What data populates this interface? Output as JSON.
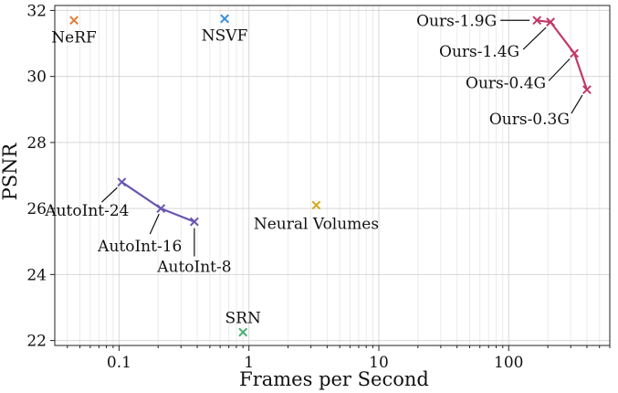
{
  "chart_data": {
    "type": "scatter",
    "xlabel": "Frames per Second",
    "ylabel": "PSNR",
    "xscale": "log",
    "xlim": [
      0.032,
      600
    ],
    "ylim": [
      21.85,
      32.15
    ],
    "grid": true,
    "xticks": [
      {
        "value": 0.1,
        "label": "0.1"
      },
      {
        "value": 1,
        "label": "1"
      },
      {
        "value": 10,
        "label": "10"
      },
      {
        "value": 100,
        "label": "100"
      }
    ],
    "yticks": [
      {
        "value": 22,
        "label": "22"
      },
      {
        "value": 24,
        "label": "24"
      },
      {
        "value": 26,
        "label": "26"
      },
      {
        "value": 28,
        "label": "28"
      },
      {
        "value": 30,
        "label": "30"
      },
      {
        "value": 32,
        "label": "32"
      }
    ],
    "series": [
      {
        "name": "NeRF",
        "color": "#e07b39",
        "connect": false,
        "points": [
          {
            "x": 0.045,
            "y": 31.7,
            "label": "NeRF"
          }
        ]
      },
      {
        "name": "NSVF",
        "color": "#3a8fd8",
        "connect": false,
        "points": [
          {
            "x": 0.65,
            "y": 31.75,
            "label": "NSVF"
          }
        ]
      },
      {
        "name": "Neural Volumes",
        "color": "#d4a81c",
        "connect": false,
        "points": [
          {
            "x": 3.3,
            "y": 26.1,
            "label": "Neural Volumes"
          }
        ]
      },
      {
        "name": "SRN",
        "color": "#4caf74",
        "connect": false,
        "points": [
          {
            "x": 0.9,
            "y": 22.25,
            "label": "SRN"
          }
        ]
      },
      {
        "name": "AutoInt",
        "color": "#6a55b0",
        "connect": true,
        "points": [
          {
            "x": 0.105,
            "y": 26.8,
            "label": "AutoInt-24"
          },
          {
            "x": 0.21,
            "y": 26.0,
            "label": "AutoInt-16"
          },
          {
            "x": 0.38,
            "y": 25.6,
            "label": "AutoInt-8"
          }
        ]
      },
      {
        "name": "Ours",
        "color": "#c0396a",
        "connect": true,
        "points": [
          {
            "x": 165,
            "y": 31.7,
            "label": "Ours-1.9G"
          },
          {
            "x": 210,
            "y": 31.65,
            "label": "Ours-1.4G"
          },
          {
            "x": 320,
            "y": 30.7,
            "label": "Ours-0.4G"
          },
          {
            "x": 400,
            "y": 29.6,
            "label": "Ours-0.3G"
          }
        ]
      }
    ]
  }
}
